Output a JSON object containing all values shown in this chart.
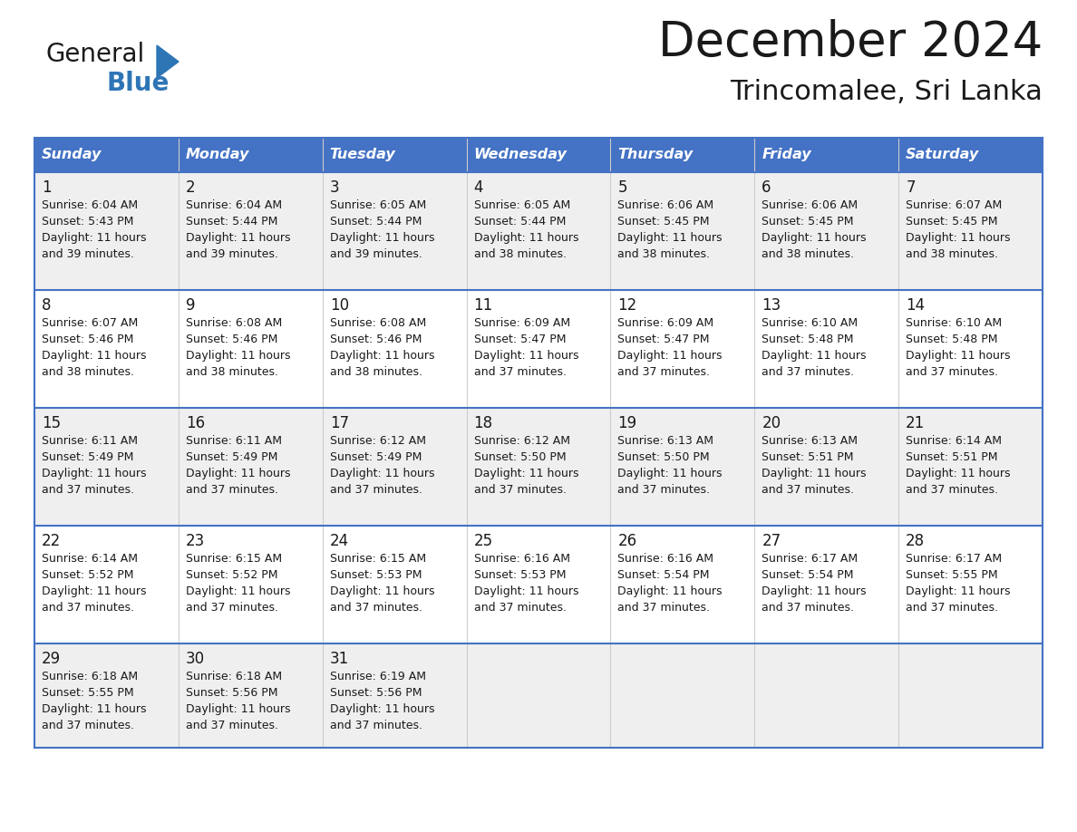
{
  "title": "December 2024",
  "subtitle": "Trincomalee, Sri Lanka",
  "header_color": "#4472C4",
  "header_text_color": "#FFFFFF",
  "bg_color": "#FFFFFF",
  "cell_bg_even": "#EFEFEF",
  "cell_bg_odd": "#FFFFFF",
  "border_color": "#4472C4",
  "text_color": "#1a1a1a",
  "day_names": [
    "Sunday",
    "Monday",
    "Tuesday",
    "Wednesday",
    "Thursday",
    "Friday",
    "Saturday"
  ],
  "logo_color1": "#1a1a1a",
  "logo_color2": "#2e75b6",
  "logo_triangle_color": "#2e75b6",
  "weeks": [
    [
      {
        "day": 1,
        "sunrise": "6:04 AM",
        "sunset": "5:43 PM",
        "daylight": "11 hours and 39 minutes."
      },
      {
        "day": 2,
        "sunrise": "6:04 AM",
        "sunset": "5:44 PM",
        "daylight": "11 hours and 39 minutes."
      },
      {
        "day": 3,
        "sunrise": "6:05 AM",
        "sunset": "5:44 PM",
        "daylight": "11 hours and 39 minutes."
      },
      {
        "day": 4,
        "sunrise": "6:05 AM",
        "sunset": "5:44 PM",
        "daylight": "11 hours and 38 minutes."
      },
      {
        "day": 5,
        "sunrise": "6:06 AM",
        "sunset": "5:45 PM",
        "daylight": "11 hours and 38 minutes."
      },
      {
        "day": 6,
        "sunrise": "6:06 AM",
        "sunset": "5:45 PM",
        "daylight": "11 hours and 38 minutes."
      },
      {
        "day": 7,
        "sunrise": "6:07 AM",
        "sunset": "5:45 PM",
        "daylight": "11 hours and 38 minutes."
      }
    ],
    [
      {
        "day": 8,
        "sunrise": "6:07 AM",
        "sunset": "5:46 PM",
        "daylight": "11 hours and 38 minutes."
      },
      {
        "day": 9,
        "sunrise": "6:08 AM",
        "sunset": "5:46 PM",
        "daylight": "11 hours and 38 minutes."
      },
      {
        "day": 10,
        "sunrise": "6:08 AM",
        "sunset": "5:46 PM",
        "daylight": "11 hours and 38 minutes."
      },
      {
        "day": 11,
        "sunrise": "6:09 AM",
        "sunset": "5:47 PM",
        "daylight": "11 hours and 37 minutes."
      },
      {
        "day": 12,
        "sunrise": "6:09 AM",
        "sunset": "5:47 PM",
        "daylight": "11 hours and 37 minutes."
      },
      {
        "day": 13,
        "sunrise": "6:10 AM",
        "sunset": "5:48 PM",
        "daylight": "11 hours and 37 minutes."
      },
      {
        "day": 14,
        "sunrise": "6:10 AM",
        "sunset": "5:48 PM",
        "daylight": "11 hours and 37 minutes."
      }
    ],
    [
      {
        "day": 15,
        "sunrise": "6:11 AM",
        "sunset": "5:49 PM",
        "daylight": "11 hours and 37 minutes."
      },
      {
        "day": 16,
        "sunrise": "6:11 AM",
        "sunset": "5:49 PM",
        "daylight": "11 hours and 37 minutes."
      },
      {
        "day": 17,
        "sunrise": "6:12 AM",
        "sunset": "5:49 PM",
        "daylight": "11 hours and 37 minutes."
      },
      {
        "day": 18,
        "sunrise": "6:12 AM",
        "sunset": "5:50 PM",
        "daylight": "11 hours and 37 minutes."
      },
      {
        "day": 19,
        "sunrise": "6:13 AM",
        "sunset": "5:50 PM",
        "daylight": "11 hours and 37 minutes."
      },
      {
        "day": 20,
        "sunrise": "6:13 AM",
        "sunset": "5:51 PM",
        "daylight": "11 hours and 37 minutes."
      },
      {
        "day": 21,
        "sunrise": "6:14 AM",
        "sunset": "5:51 PM",
        "daylight": "11 hours and 37 minutes."
      }
    ],
    [
      {
        "day": 22,
        "sunrise": "6:14 AM",
        "sunset": "5:52 PM",
        "daylight": "11 hours and 37 minutes."
      },
      {
        "day": 23,
        "sunrise": "6:15 AM",
        "sunset": "5:52 PM",
        "daylight": "11 hours and 37 minutes."
      },
      {
        "day": 24,
        "sunrise": "6:15 AM",
        "sunset": "5:53 PM",
        "daylight": "11 hours and 37 minutes."
      },
      {
        "day": 25,
        "sunrise": "6:16 AM",
        "sunset": "5:53 PM",
        "daylight": "11 hours and 37 minutes."
      },
      {
        "day": 26,
        "sunrise": "6:16 AM",
        "sunset": "5:54 PM",
        "daylight": "11 hours and 37 minutes."
      },
      {
        "day": 27,
        "sunrise": "6:17 AM",
        "sunset": "5:54 PM",
        "daylight": "11 hours and 37 minutes."
      },
      {
        "day": 28,
        "sunrise": "6:17 AM",
        "sunset": "5:55 PM",
        "daylight": "11 hours and 37 minutes."
      }
    ],
    [
      {
        "day": 29,
        "sunrise": "6:18 AM",
        "sunset": "5:55 PM",
        "daylight": "11 hours and 37 minutes."
      },
      {
        "day": 30,
        "sunrise": "6:18 AM",
        "sunset": "5:56 PM",
        "daylight": "11 hours and 37 minutes."
      },
      {
        "day": 31,
        "sunrise": "6:19 AM",
        "sunset": "5:56 PM",
        "daylight": "11 hours and 37 minutes."
      },
      null,
      null,
      null,
      null
    ]
  ]
}
